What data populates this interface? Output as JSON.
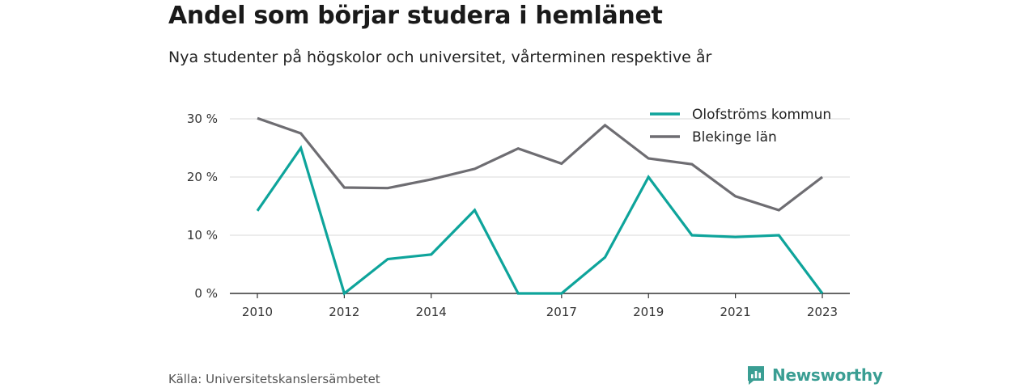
{
  "title": "Andel som börjar studera i hemlänet",
  "subtitle": "Nya studenter på högskolor och universitet, vårterminen respektive år",
  "source": "Källa: Universitetskanslersämbetet",
  "brand": "Newsworthy",
  "colors": {
    "olofstrom": "#0ea49b",
    "blekinge": "#6e6d72",
    "grid": "#d9d9d9",
    "axis": "#333333",
    "brand": "#3a9e93"
  },
  "chart_data": {
    "type": "line",
    "x": [
      2010,
      2011,
      2012,
      2013,
      2014,
      2015,
      2016,
      2017,
      2018,
      2019,
      2020,
      2021,
      2022,
      2023
    ],
    "x_ticks": [
      2010,
      2012,
      2014,
      2017,
      2019,
      2021,
      2023
    ],
    "y_ticks": [
      0,
      10,
      20,
      30
    ],
    "y_tick_labels": [
      "0 %",
      "10 %",
      "20 %",
      "30 %"
    ],
    "ylim": [
      0,
      30
    ],
    "grid": true,
    "legend_position": "top-right",
    "series": [
      {
        "name": "Olofströms kommun",
        "color": "#0ea49b",
        "values": [
          14.2,
          25.0,
          0.0,
          5.9,
          6.7,
          14.3,
          0.0,
          0.0,
          6.2,
          20.0,
          10.0,
          9.7,
          10.0,
          0.0
        ]
      },
      {
        "name": "Blekinge län",
        "color": "#6e6d72",
        "values": [
          30.1,
          27.5,
          18.2,
          18.1,
          19.6,
          21.4,
          24.9,
          22.3,
          28.9,
          23.2,
          22.2,
          16.7,
          14.3,
          20.0
        ]
      }
    ]
  }
}
